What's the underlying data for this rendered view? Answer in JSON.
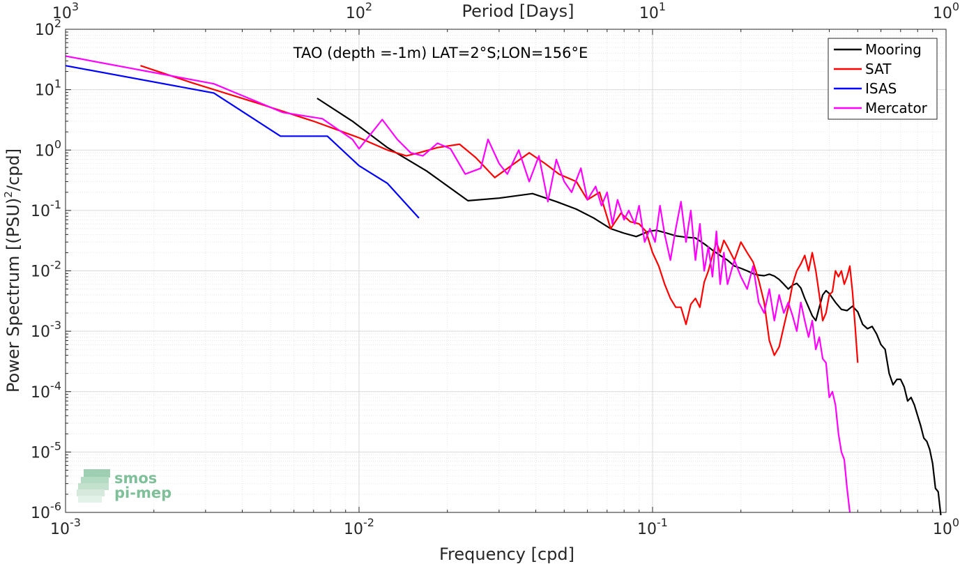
{
  "chart_data": {
    "type": "line",
    "title": "TAO (depth =-1m) LAT=2°S;LON=156°E",
    "xlabel": "Frequency [cpd]",
    "ylabel_base": "Power Spectrum [(PSU)",
    "ylabel_sup": "2",
    "ylabel_tail": "/cpd]",
    "top_xlabel": "Period [Days]",
    "xscale": "log",
    "yscale": "log",
    "xlim": [
      0.001,
      1
    ],
    "ylim": [
      1e-06,
      100
    ],
    "grid": true,
    "legend_position": "top-right",
    "x_ticks": [
      {
        "value": 0.001,
        "base": "10",
        "exp": "-3"
      },
      {
        "value": 0.01,
        "base": "10",
        "exp": "-2"
      },
      {
        "value": 0.1,
        "base": "10",
        "exp": "-1"
      },
      {
        "value": 1,
        "base": "10",
        "exp": "0"
      }
    ],
    "top_ticks": [
      {
        "value": 0.001,
        "base": "10",
        "exp": "3"
      },
      {
        "value": 0.01,
        "base": "10",
        "exp": "2"
      },
      {
        "value": 0.1,
        "base": "10",
        "exp": "1"
      },
      {
        "value": 1,
        "base": "10",
        "exp": "0"
      }
    ],
    "y_ticks": [
      {
        "value": 100,
        "base": "10",
        "exp": "2"
      },
      {
        "value": 10,
        "base": "10",
        "exp": "1"
      },
      {
        "value": 1,
        "base": "10",
        "exp": "0"
      },
      {
        "value": 0.1,
        "base": "10",
        "exp": "-1"
      },
      {
        "value": 0.01,
        "base": "10",
        "exp": "-2"
      },
      {
        "value": 0.001,
        "base": "10",
        "exp": "-3"
      },
      {
        "value": 0.0001,
        "base": "10",
        "exp": "-4"
      },
      {
        "value": 1e-05,
        "base": "10",
        "exp": "-5"
      },
      {
        "value": 1e-06,
        "base": "10",
        "exp": "-6"
      }
    ],
    "series": [
      {
        "name": "Mooring",
        "color": "#000000",
        "points": [
          [
            0.0072,
            7.2
          ],
          [
            0.0095,
            3.0
          ],
          [
            0.0125,
            1.1
          ],
          [
            0.017,
            0.45
          ],
          [
            0.0235,
            0.145
          ],
          [
            0.03,
            0.16
          ],
          [
            0.039,
            0.19
          ],
          [
            0.047,
            0.14
          ],
          [
            0.055,
            0.105
          ],
          [
            0.063,
            0.075
          ],
          [
            0.072,
            0.05
          ],
          [
            0.08,
            0.042
          ],
          [
            0.088,
            0.037
          ],
          [
            0.097,
            0.045
          ],
          [
            0.103,
            0.047
          ],
          [
            0.112,
            0.042
          ],
          [
            0.12,
            0.038
          ],
          [
            0.13,
            0.036
          ],
          [
            0.14,
            0.035
          ],
          [
            0.15,
            0.028
          ],
          [
            0.16,
            0.022
          ],
          [
            0.17,
            0.018
          ],
          [
            0.18,
            0.015
          ],
          [
            0.19,
            0.012
          ],
          [
            0.2,
            0.011
          ],
          [
            0.21,
            0.01
          ],
          [
            0.22,
            0.009
          ],
          [
            0.23,
            0.0085
          ],
          [
            0.24,
            0.0083
          ],
          [
            0.25,
            0.0088
          ],
          [
            0.26,
            0.0082
          ],
          [
            0.27,
            0.0072
          ],
          [
            0.28,
            0.006
          ],
          [
            0.29,
            0.005
          ],
          [
            0.3,
            0.0058
          ],
          [
            0.31,
            0.0062
          ],
          [
            0.32,
            0.0052
          ],
          [
            0.33,
            0.0035
          ],
          [
            0.34,
            0.0025
          ],
          [
            0.35,
            0.0018
          ],
          [
            0.36,
            0.0015
          ],
          [
            0.37,
            0.0025
          ],
          [
            0.38,
            0.004
          ],
          [
            0.39,
            0.0047
          ],
          [
            0.4,
            0.0042
          ],
          [
            0.42,
            0.003
          ],
          [
            0.44,
            0.0023
          ],
          [
            0.46,
            0.0022
          ],
          [
            0.48,
            0.0026
          ],
          [
            0.5,
            0.0021
          ],
          [
            0.52,
            0.0013
          ],
          [
            0.54,
            0.0011
          ],
          [
            0.56,
            0.0012
          ],
          [
            0.58,
            0.0009
          ],
          [
            0.6,
            0.0006
          ],
          [
            0.62,
            0.0005
          ],
          [
            0.64,
            0.0002
          ],
          [
            0.66,
            0.00013
          ],
          [
            0.68,
            0.00016
          ],
          [
            0.7,
            0.00016
          ],
          [
            0.72,
            0.00012
          ],
          [
            0.74,
            7e-05
          ],
          [
            0.76,
            8e-05
          ],
          [
            0.78,
            6e-05
          ],
          [
            0.8,
            4e-05
          ],
          [
            0.82,
            2.7e-05
          ],
          [
            0.84,
            1.7e-05
          ],
          [
            0.86,
            1.5e-05
          ],
          [
            0.88,
            1.1e-05
          ],
          [
            0.9,
            6.5e-06
          ],
          [
            0.92,
            2.5e-06
          ],
          [
            0.94,
            2.2e-06
          ],
          [
            0.96,
            9e-07
          ]
        ]
      },
      {
        "name": "SAT",
        "color": "#ff0000",
        "points": [
          [
            0.0018,
            25
          ],
          [
            0.0027,
            13
          ],
          [
            0.0045,
            6.0
          ],
          [
            0.007,
            3.0
          ],
          [
            0.01,
            1.6
          ],
          [
            0.0125,
            1.0
          ],
          [
            0.0145,
            0.8
          ],
          [
            0.016,
            0.9
          ],
          [
            0.0185,
            1.1
          ],
          [
            0.022,
            1.25
          ],
          [
            0.025,
            0.75
          ],
          [
            0.029,
            0.35
          ],
          [
            0.033,
            0.55
          ],
          [
            0.038,
            0.9
          ],
          [
            0.043,
            0.6
          ],
          [
            0.048,
            0.4
          ],
          [
            0.055,
            0.3
          ],
          [
            0.06,
            0.15
          ],
          [
            0.066,
            0.2
          ],
          [
            0.072,
            0.05
          ],
          [
            0.078,
            0.09
          ],
          [
            0.084,
            0.065
          ],
          [
            0.09,
            0.06
          ],
          [
            0.095,
            0.045
          ],
          [
            0.1,
            0.02
          ],
          [
            0.105,
            0.012
          ],
          [
            0.11,
            0.006
          ],
          [
            0.115,
            0.0035
          ],
          [
            0.12,
            0.0025
          ],
          [
            0.125,
            0.0025
          ],
          [
            0.13,
            0.0013
          ],
          [
            0.135,
            0.0028
          ],
          [
            0.14,
            0.0035
          ],
          [
            0.145,
            0.0025
          ],
          [
            0.15,
            0.0065
          ],
          [
            0.155,
            0.01
          ],
          [
            0.16,
            0.018
          ],
          [
            0.165,
            0.03
          ],
          [
            0.17,
            0.02
          ],
          [
            0.175,
            0.032
          ],
          [
            0.18,
            0.025
          ],
          [
            0.19,
            0.015
          ],
          [
            0.2,
            0.03
          ],
          [
            0.21,
            0.02
          ],
          [
            0.22,
            0.014
          ],
          [
            0.23,
            0.007
          ],
          [
            0.24,
            0.003
          ],
          [
            0.25,
            0.0007
          ],
          [
            0.26,
            0.0004
          ],
          [
            0.27,
            0.00055
          ],
          [
            0.28,
            0.0012
          ],
          [
            0.29,
            0.0025
          ],
          [
            0.3,
            0.006
          ],
          [
            0.31,
            0.01
          ],
          [
            0.32,
            0.013
          ],
          [
            0.33,
            0.018
          ],
          [
            0.34,
            0.01
          ],
          [
            0.35,
            0.02
          ],
          [
            0.36,
            0.01
          ],
          [
            0.37,
            0.004
          ],
          [
            0.38,
            0.0015
          ],
          [
            0.39,
            0.002
          ],
          [
            0.4,
            0.004
          ],
          [
            0.41,
            0.0045
          ],
          [
            0.42,
            0.01
          ],
          [
            0.43,
            0.008
          ],
          [
            0.44,
            0.01
          ],
          [
            0.45,
            0.006
          ],
          [
            0.46,
            0.008
          ],
          [
            0.47,
            0.012
          ],
          [
            0.48,
            0.0045
          ],
          [
            0.49,
            0.0012
          ],
          [
            0.5,
            0.0003
          ]
        ]
      },
      {
        "name": "ISAS",
        "color": "#0000ff",
        "points": [
          [
            0.001,
            25
          ],
          [
            0.0032,
            8.8
          ],
          [
            0.0054,
            1.7
          ],
          [
            0.0078,
            1.7
          ],
          [
            0.01,
            0.55
          ],
          [
            0.0125,
            0.28
          ],
          [
            0.016,
            0.075
          ]
        ]
      },
      {
        "name": "Mercator",
        "color": "#ff00ff",
        "points": [
          [
            0.001,
            36
          ],
          [
            0.0032,
            12.5
          ],
          [
            0.0055,
            4.2
          ],
          [
            0.0075,
            3.3
          ],
          [
            0.0095,
            1.5
          ],
          [
            0.01,
            1.05
          ],
          [
            0.012,
            3.2
          ],
          [
            0.0135,
            1.5
          ],
          [
            0.015,
            0.9
          ],
          [
            0.0165,
            0.8
          ],
          [
            0.0185,
            1.3
          ],
          [
            0.0205,
            1.05
          ],
          [
            0.023,
            0.4
          ],
          [
            0.026,
            0.5
          ],
          [
            0.0275,
            1.5
          ],
          [
            0.03,
            0.6
          ],
          [
            0.032,
            0.4
          ],
          [
            0.035,
            1.0
          ],
          [
            0.038,
            0.3
          ],
          [
            0.041,
            0.8
          ],
          [
            0.044,
            0.14
          ],
          [
            0.047,
            0.7
          ],
          [
            0.05,
            0.3
          ],
          [
            0.053,
            0.2
          ],
          [
            0.057,
            0.5
          ],
          [
            0.06,
            0.15
          ],
          [
            0.064,
            0.25
          ],
          [
            0.067,
            0.12
          ],
          [
            0.07,
            0.2
          ],
          [
            0.073,
            0.06
          ],
          [
            0.076,
            0.15
          ],
          [
            0.08,
            0.07
          ],
          [
            0.083,
            0.1
          ],
          [
            0.087,
            0.06
          ],
          [
            0.09,
            0.12
          ],
          [
            0.094,
            0.03
          ],
          [
            0.098,
            0.05
          ],
          [
            0.102,
            0.03
          ],
          [
            0.106,
            0.12
          ],
          [
            0.11,
            0.04
          ],
          [
            0.115,
            0.015
          ],
          [
            0.12,
            0.05
          ],
          [
            0.125,
            0.14
          ],
          [
            0.13,
            0.03
          ],
          [
            0.135,
            0.1
          ],
          [
            0.14,
            0.015
          ],
          [
            0.145,
            0.06
          ],
          [
            0.15,
            0.01
          ],
          [
            0.155,
            0.025
          ],
          [
            0.16,
            0.008
          ],
          [
            0.165,
            0.045
          ],
          [
            0.17,
            0.006
          ],
          [
            0.175,
            0.02
          ],
          [
            0.18,
            0.006
          ],
          [
            0.19,
            0.015
          ],
          [
            0.2,
            0.008
          ],
          [
            0.21,
            0.005
          ],
          [
            0.22,
            0.012
          ],
          [
            0.23,
            0.003
          ],
          [
            0.24,
            0.002
          ],
          [
            0.25,
            0.005
          ],
          [
            0.26,
            0.0015
          ],
          [
            0.27,
            0.004
          ],
          [
            0.28,
            0.002
          ],
          [
            0.29,
            0.003
          ],
          [
            0.3,
            0.0018
          ],
          [
            0.31,
            0.001
          ],
          [
            0.32,
            0.003
          ],
          [
            0.33,
            0.0015
          ],
          [
            0.34,
            0.0008
          ],
          [
            0.35,
            0.0015
          ],
          [
            0.36,
            0.0005
          ],
          [
            0.37,
            0.0008
          ],
          [
            0.38,
            0.00035
          ],
          [
            0.39,
            0.0003
          ],
          [
            0.4,
            8e-05
          ],
          [
            0.41,
            0.0001
          ],
          [
            0.42,
            6e-05
          ],
          [
            0.43,
            2e-05
          ],
          [
            0.44,
            1e-05
          ],
          [
            0.45,
            7.5e-06
          ],
          [
            0.46,
            2.5e-06
          ],
          [
            0.47,
            1e-06
          ]
        ]
      }
    ]
  },
  "logo": {
    "line1": "smos",
    "line2": "pi-mep"
  }
}
